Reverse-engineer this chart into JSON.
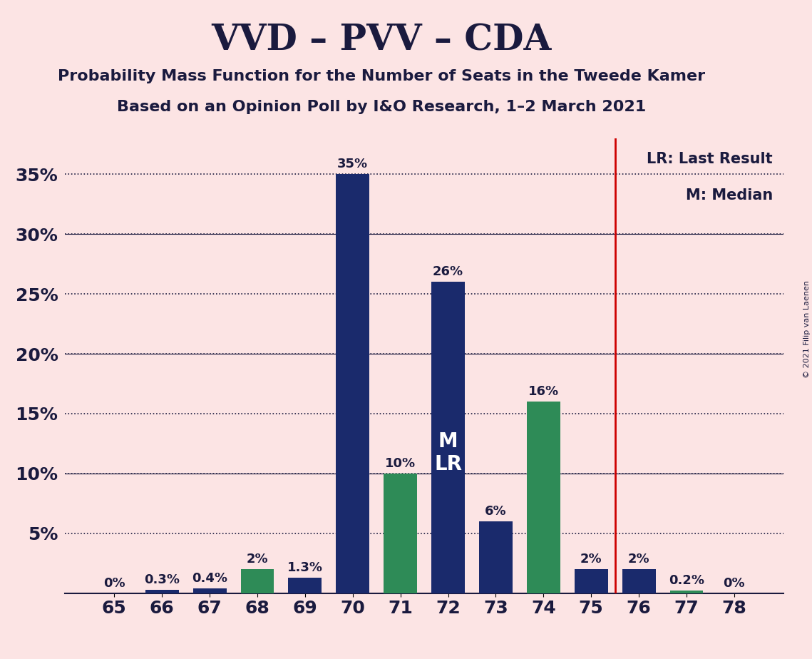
{
  "title": "VVD – PVV – CDA",
  "subtitle1": "Probability Mass Function for the Number of Seats in the Tweede Kamer",
  "subtitle2": "Based on an Opinion Poll by I&O Research, 1–2 March 2021",
  "copyright": "© 2021 Filip van Laenen",
  "categories": [
    65,
    66,
    67,
    68,
    69,
    70,
    71,
    72,
    73,
    74,
    75,
    76,
    77,
    78
  ],
  "values": [
    0.0,
    0.3,
    0.4,
    2.0,
    1.3,
    35.0,
    10.0,
    26.0,
    6.0,
    16.0,
    2.0,
    2.0,
    0.2,
    0.0
  ],
  "colors": [
    "#1a2a6c",
    "#1a2a6c",
    "#1a2a6c",
    "#2e8b57",
    "#1a2a6c",
    "#1a2a6c",
    "#2e8b57",
    "#1a2a6c",
    "#1a2a6c",
    "#2e8b57",
    "#1a2a6c",
    "#1a2a6c",
    "#2e8b57",
    "#2e8b57"
  ],
  "labels": [
    "0%",
    "0.3%",
    "0.4%",
    "2%",
    "1.3%",
    "35%",
    "10%",
    "26%",
    "6%",
    "16%",
    "2%",
    "2%",
    "0.2%",
    "0%"
  ],
  "inside_label_index": 7,
  "inside_label_text": "M\nLR",
  "vline_index": 10.5,
  "vline_color": "#cc0000",
  "legend_lr": "LR: Last Result",
  "legend_m": "M: Median",
  "background_color": "#fce4e4",
  "bar_color_navy": "#1a2a6c",
  "bar_color_green": "#2e8b57",
  "ylim": [
    0,
    38
  ],
  "yticks": [
    0,
    5,
    10,
    15,
    20,
    25,
    30,
    35
  ],
  "ytick_labels": [
    "",
    "5%",
    "10%",
    "15%",
    "20%",
    "25%",
    "30%",
    "35%"
  ],
  "dotted_grid_lines": [
    5,
    10,
    15,
    20,
    25,
    30,
    35
  ],
  "solid_grid_lines": [
    10,
    20,
    30
  ],
  "title_fontsize": 36,
  "subtitle_fontsize": 16,
  "label_fontsize": 13,
  "tick_fontsize": 18,
  "inside_label_fontsize": 20
}
